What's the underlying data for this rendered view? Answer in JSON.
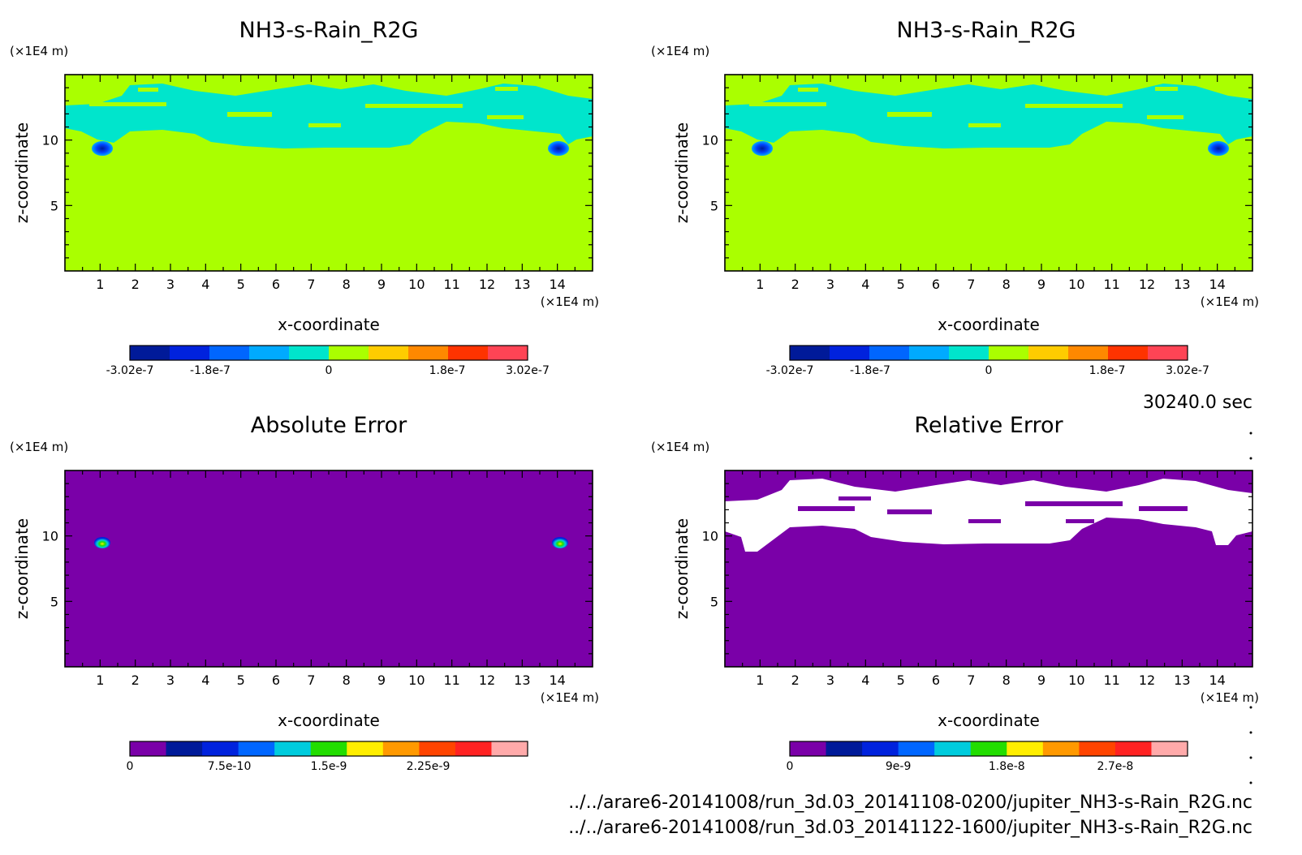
{
  "time_label": "30240.0 sec",
  "files": [
    "../../arare6-20141008/run_3d.03_20141108-0200/jupiter_NH3-s-Rain_R2G.nc",
    "../../arare6-20141008/run_3d.03_20141122-1600/jupiter_NH3-s-Rain_R2G.nc"
  ],
  "chart_data": [
    {
      "type": "heatmap",
      "title": "NH3-s-Rain_R2G",
      "xlabel": "x-coordinate",
      "ylabel": "z-coordinate",
      "x_unit": "(×1E4 m)",
      "y_unit": "(×1E4 m)",
      "xlim": [
        0,
        15
      ],
      "ylim": [
        0,
        15
      ],
      "xticks": [
        "1",
        "2",
        "3",
        "4",
        "5",
        "6",
        "7",
        "8",
        "9",
        "10",
        "11",
        "12",
        "13",
        "14"
      ],
      "yticks": [
        "5",
        "10"
      ],
      "background_value": "0",
      "colorbar": {
        "colors": [
          "#001a99",
          "#0022dd",
          "#0066ff",
          "#00aaff",
          "#00e5cc",
          "#aaff00",
          "#ffcc00",
          "#ff8800",
          "#ff3300",
          "#ff4455"
        ],
        "tick_labels": [
          "-3.02e-7",
          "-1.8e-7",
          "0",
          "1.8e-7",
          "3.02e-7"
        ],
        "tick_values": [
          -3.02e-07,
          -1.8e-07,
          0,
          1.8e-07,
          3.02e-07
        ],
        "range": [
          -3.02e-07,
          3.02e-07
        ]
      }
    },
    {
      "type": "heatmap",
      "title": "NH3-s-Rain_R2G",
      "xlabel": "x-coordinate",
      "ylabel": "z-coordinate",
      "x_unit": "(×1E4 m)",
      "y_unit": "(×1E4 m)",
      "xlim": [
        0,
        15
      ],
      "ylim": [
        0,
        15
      ],
      "xticks": [
        "1",
        "2",
        "3",
        "4",
        "5",
        "6",
        "7",
        "8",
        "9",
        "10",
        "11",
        "12",
        "13",
        "14"
      ],
      "yticks": [
        "5",
        "10"
      ],
      "background_value": "0",
      "colorbar": {
        "colors": [
          "#001a99",
          "#0022dd",
          "#0066ff",
          "#00aaff",
          "#00e5cc",
          "#aaff00",
          "#ffcc00",
          "#ff8800",
          "#ff3300",
          "#ff4455"
        ],
        "tick_labels": [
          "-3.02e-7",
          "-1.8e-7",
          "0",
          "1.8e-7",
          "3.02e-7"
        ],
        "tick_values": [
          -3.02e-07,
          -1.8e-07,
          0,
          1.8e-07,
          3.02e-07
        ],
        "range": [
          -3.02e-07,
          3.02e-07
        ]
      }
    },
    {
      "type": "heatmap",
      "title": "Absolute Error",
      "xlabel": "x-coordinate",
      "ylabel": "z-coordinate",
      "x_unit": "(×1E4 m)",
      "y_unit": "(×1E4 m)",
      "xlim": [
        0,
        15
      ],
      "ylim": [
        0,
        15
      ],
      "xticks": [
        "1",
        "2",
        "3",
        "4",
        "5",
        "6",
        "7",
        "8",
        "9",
        "10",
        "11",
        "12",
        "13",
        "14"
      ],
      "yticks": [
        "5",
        "10"
      ],
      "background_value": "0",
      "colorbar": {
        "colors": [
          "#7a00a8",
          "#001a99",
          "#0022dd",
          "#0066ff",
          "#00ccdd",
          "#22dd00",
          "#ffee00",
          "#ff9900",
          "#ff4400",
          "#ff2222",
          "#ffaaaa"
        ],
        "tick_labels": [
          "0",
          "7.5e-10",
          "1.5e-9",
          "2.25e-9"
        ],
        "tick_values": [
          0,
          7.5e-10,
          1.5e-09,
          2.25e-09
        ],
        "range": [
          0,
          3e-09
        ]
      }
    },
    {
      "type": "heatmap",
      "title": "Relative Error",
      "xlabel": "x-coordinate",
      "ylabel": "z-coordinate",
      "x_unit": "(×1E4 m)",
      "y_unit": "(×1E4 m)",
      "xlim": [
        0,
        15
      ],
      "ylim": [
        0,
        15
      ],
      "xticks": [
        "1",
        "2",
        "3",
        "4",
        "5",
        "6",
        "7",
        "8",
        "9",
        "10",
        "11",
        "12",
        "13",
        "14"
      ],
      "yticks": [
        "5",
        "10"
      ],
      "background_value": "0",
      "colorbar": {
        "colors": [
          "#7a00a8",
          "#001a99",
          "#0022dd",
          "#0066ff",
          "#00ccdd",
          "#22dd00",
          "#ffee00",
          "#ff9900",
          "#ff4400",
          "#ff2222",
          "#ffaaaa"
        ],
        "tick_labels": [
          "0",
          "9e-9",
          "1.8e-8",
          "2.7e-8"
        ],
        "tick_values": [
          0,
          9e-09,
          1.8e-08,
          2.7e-08
        ],
        "range": [
          0,
          3.3e-08
        ]
      }
    }
  ]
}
